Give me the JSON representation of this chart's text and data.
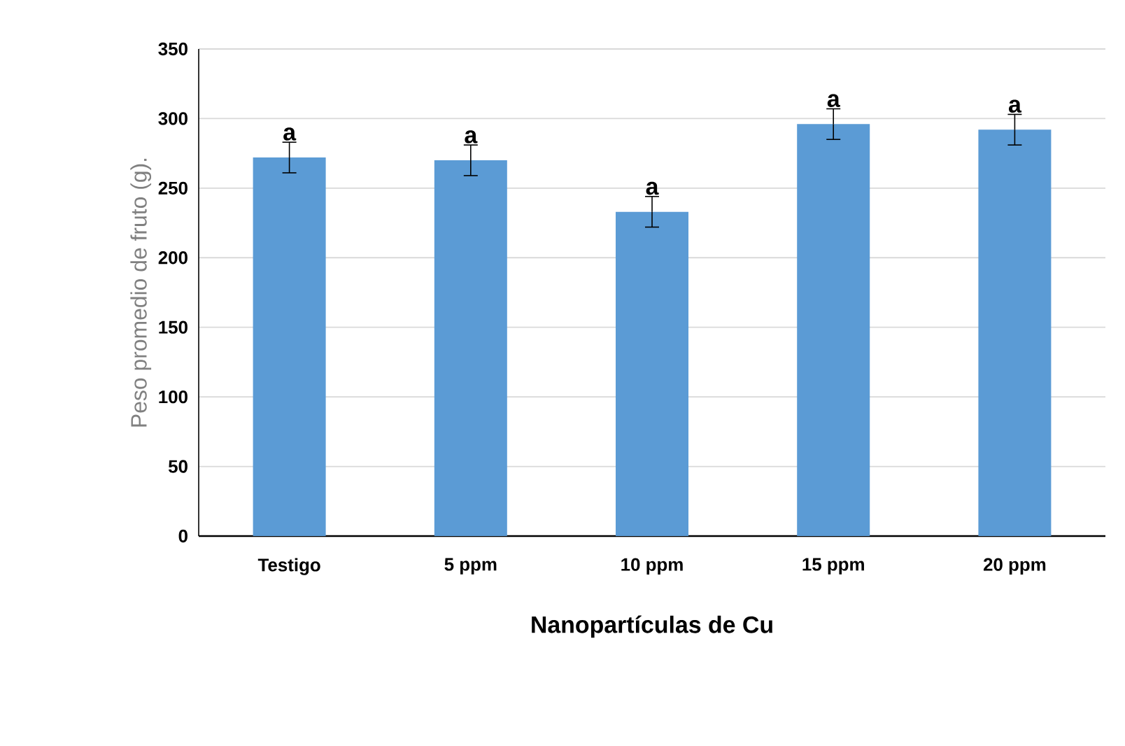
{
  "chart_data": {
    "type": "bar",
    "xlabel": "Nanopartículas de Cu",
    "ylabel": "Peso promedio de fruto (g).",
    "categories": [
      "Testigo",
      "5 ppm",
      "10 ppm",
      "15 ppm",
      "20 ppm"
    ],
    "values": [
      272,
      270,
      233,
      296,
      292
    ],
    "errors": [
      11,
      11,
      11,
      11,
      11
    ],
    "color": "#5b9bd5",
    "ylim": [
      0,
      350
    ],
    "yticks": [
      0,
      50,
      100,
      150,
      200,
      250,
      300,
      350
    ],
    "grid": "y",
    "annotations": [
      {
        "text": "a",
        "x": "Testigo",
        "y": 283
      },
      {
        "text": "a",
        "x": "5 ppm",
        "y": 281
      },
      {
        "text": "a",
        "x": "10 ppm",
        "y": 244
      },
      {
        "text": "a",
        "x": "15 ppm",
        "y": 307
      },
      {
        "text": "a",
        "x": "20 ppm",
        "y": 303
      }
    ]
  }
}
